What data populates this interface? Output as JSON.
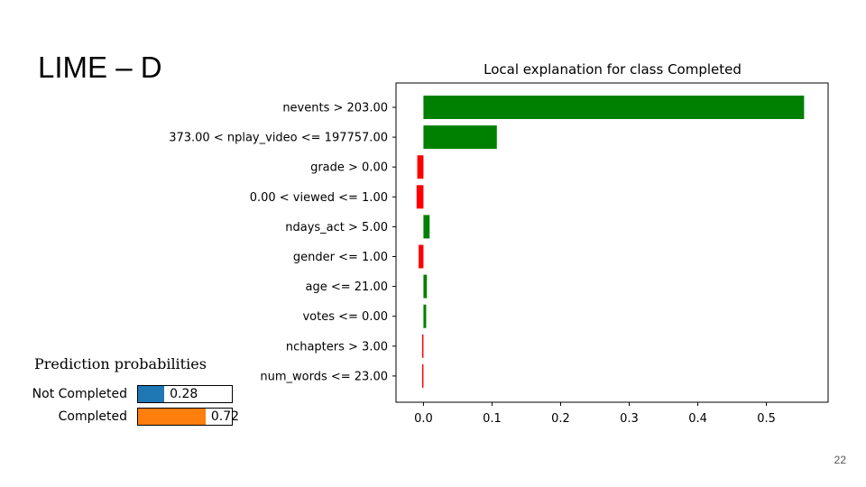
{
  "slide": {
    "title": "LIME – D",
    "page_number": "22"
  },
  "chart_data": {
    "type": "bar",
    "orientation": "horizontal",
    "title": "Local explanation for class Completed",
    "xlabel": "",
    "ylabel": "",
    "xlim": [
      -0.04,
      0.59
    ],
    "xticks": [
      "0.0",
      "0.1",
      "0.2",
      "0.3",
      "0.4",
      "0.5"
    ],
    "categories": [
      "nevents > 203.00",
      "373.00 < nplay_video <= 197757.00",
      "grade > 0.00",
      "0.00 < viewed <= 1.00",
      "ndays_act > 5.00",
      "gender <= 1.00",
      "age <= 21.00",
      "votes <= 0.00",
      "nchapters > 3.00",
      "num_words <= 23.00"
    ],
    "values": [
      0.555,
      0.107,
      -0.009,
      -0.01,
      0.009,
      -0.007,
      0.005,
      0.004,
      -0.002,
      -0.002
    ],
    "positive_color": "#008000",
    "negative_color": "#ff0000",
    "grid": false
  },
  "prediction": {
    "title": "Prediction probabilities",
    "items": [
      {
        "label": "Not Completed",
        "value": 0.28,
        "value_text": "0.28",
        "color": "#1f77b4"
      },
      {
        "label": "Completed",
        "value": 0.72,
        "value_text": "0.72",
        "color": "#ff7f0e"
      }
    ]
  }
}
